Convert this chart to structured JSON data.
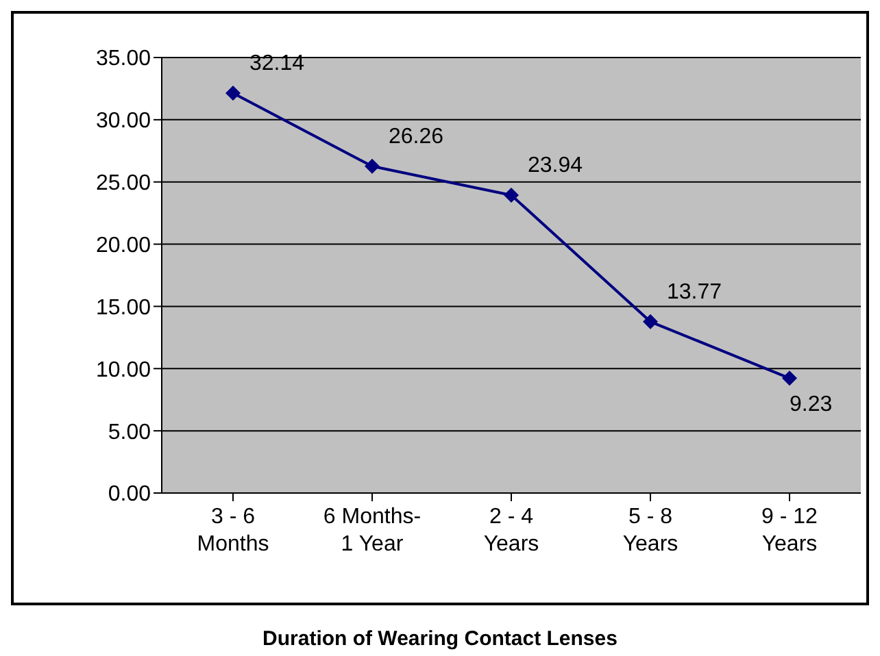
{
  "chart_data": {
    "type": "line",
    "xlabel": "Duration of Wearing Contact Lenses",
    "categories": [
      "3 - 6\nMonths",
      "6 Months-\n1 Year",
      "2 - 4\nYears",
      "5 - 8\nYears",
      "9 - 12\nYears"
    ],
    "series": [
      {
        "color": "#000080",
        "values": [
          32.14,
          26.26,
          23.94,
          13.77,
          9.23
        ]
      }
    ],
    "ylim": [
      0,
      35
    ],
    "yticks": [
      {
        "value": 0,
        "label": "0.00"
      },
      {
        "value": 5,
        "label": "5.00"
      },
      {
        "value": 10,
        "label": "10.00"
      },
      {
        "value": 15,
        "label": "15.00"
      },
      {
        "value": 20,
        "label": "20.00"
      },
      {
        "value": 25,
        "label": "25.00"
      },
      {
        "value": 30,
        "label": "30.00"
      },
      {
        "value": 35,
        "label": "35.00"
      }
    ],
    "grid": "y",
    "marker": "diamond",
    "line_style": "solid",
    "data_labels": true
  }
}
